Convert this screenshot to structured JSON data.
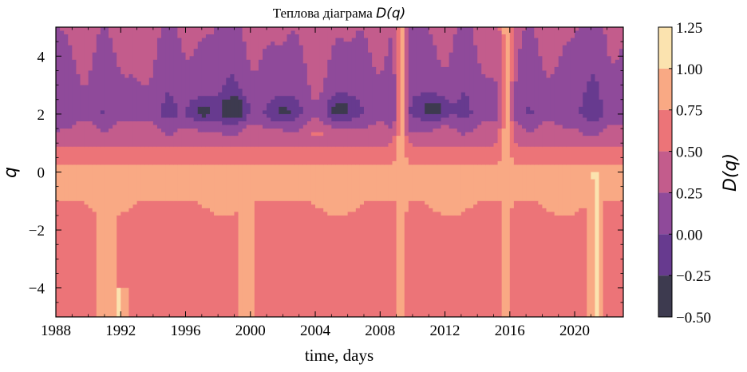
{
  "chart_data": {
    "type": "heatmap",
    "title_prefix": "Теплова діаграма ",
    "title_math": "D(q)",
    "xlabel": "time, days",
    "ylabel": "q",
    "colorbar_label": "D(q)",
    "xlim": [
      1988,
      2023
    ],
    "ylim": [
      -5,
      5
    ],
    "x_ticks": [
      1988,
      1992,
      1996,
      2000,
      2004,
      2008,
      2012,
      2016,
      2020
    ],
    "y_ticks": [
      -4,
      -2,
      0,
      2,
      4
    ],
    "y_tick_labels": [
      "−4",
      "−2",
      "0",
      "2",
      "4"
    ],
    "levels": [
      -0.5,
      -0.25,
      0.0,
      0.25,
      0.5,
      0.75,
      1.0,
      1.25
    ],
    "level_labels": [
      "−0.50",
      "−0.25",
      "0.00",
      "0.25",
      "0.50",
      "0.75",
      "1.00",
      "1.25"
    ],
    "level_colors": [
      "#3d3a4f",
      "#673a8f",
      "#8f4a9a",
      "#c35c8c",
      "#ec7478",
      "#f9a984",
      "#fbe3af"
    ],
    "surface": {
      "description_q_rows": [
        {
          "q": 5.0,
          "D": 0.3
        },
        {
          "q": 2.0,
          "D": 0.05
        },
        {
          "q": 1.2,
          "D": 0.4
        },
        {
          "q": 0.6,
          "D": 0.62
        },
        {
          "q": 0.0,
          "D": 0.85
        },
        {
          "q": -1.5,
          "D": 0.7
        },
        {
          "q": -5.0,
          "D": 0.7
        }
      ],
      "bright_episodes": [
        {
          "year": 1991.0,
          "q_range": [
            -5,
            -1
          ],
          "D": 0.85
        },
        {
          "year": 1991.8,
          "q_range": [
            -5,
            -4
          ],
          "D": 1.05
        },
        {
          "year": 1999.8,
          "q_range": [
            -5,
            -1
          ],
          "D": 0.85
        },
        {
          "year": 2009.3,
          "q_range": [
            -5,
            5
          ],
          "D": 0.85
        },
        {
          "year": 2015.8,
          "q_range": [
            -5,
            5
          ],
          "D": 0.85
        },
        {
          "year": 2021.3,
          "q_range": [
            -5,
            0
          ],
          "D": 1.05
        }
      ],
      "dark_episodes": [
        {
          "year": 1999.0,
          "q": 2.2,
          "D": -0.35
        },
        {
          "year": 2005.5,
          "q": 2.2,
          "D": -0.35
        },
        {
          "year": 2011.4,
          "q": 2.2,
          "D": -0.35
        },
        {
          "year": 1997.0,
          "q": 2.1,
          "D": -0.3
        },
        {
          "year": 2002.0,
          "q": 2.1,
          "D": -0.3
        }
      ]
    }
  }
}
